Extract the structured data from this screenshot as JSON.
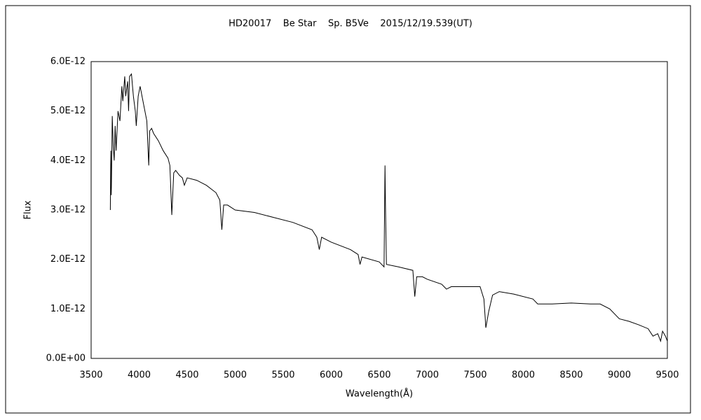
{
  "chart_data": {
    "type": "line",
    "title": "HD20017    Be Star    Sp. B5Ve    2015/12/19.539(UT)",
    "x_label": "Wavelength(Å)",
    "y_label": "Flux",
    "x": [
      3700,
      3705,
      3710,
      3720,
      3730,
      3740,
      3750,
      3760,
      3780,
      3800,
      3820,
      3830,
      3850,
      3860,
      3880,
      3890,
      3900,
      3920,
      3940,
      3960,
      3970,
      3990,
      4010,
      4030,
      4050,
      4080,
      4100,
      4110,
      4130,
      4150,
      4200,
      4250,
      4300,
      4320,
      4340,
      4360,
      4380,
      4420,
      4450,
      4471,
      4500,
      4600,
      4700,
      4800,
      4840,
      4861,
      4880,
      4920,
      5000,
      5200,
      5400,
      5600,
      5800,
      5850,
      5876,
      5900,
      6000,
      6200,
      6280,
      6300,
      6320,
      6500,
      6550,
      6560,
      6565,
      6575,
      6700,
      6850,
      6870,
      6890,
      6950,
      7000,
      7150,
      7200,
      7250,
      7400,
      7550,
      7590,
      7610,
      7640,
      7680,
      7750,
      7900,
      8100,
      8150,
      8300,
      8500,
      8700,
      8800,
      8900,
      9000,
      9100,
      9200,
      9300,
      9350,
      9400,
      9430,
      9450,
      9480,
      9500
    ],
    "series": [
      {
        "color": "#000000",
        "values": [
          3e-12,
          4.2e-12,
          3.3e-12,
          4.9e-12,
          4.3e-12,
          4e-12,
          4.7e-12,
          4.2e-12,
          5e-12,
          4.8e-12,
          5.5e-12,
          5.2e-12,
          5.7e-12,
          5.3e-12,
          5.6e-12,
          5e-12,
          5.7e-12,
          5.75e-12,
          5.3e-12,
          5e-12,
          4.7e-12,
          5.3e-12,
          5.5e-12,
          5.3e-12,
          5.1e-12,
          4.8e-12,
          3.9e-12,
          4.6e-12,
          4.65e-12,
          4.55e-12,
          4.4e-12,
          4.2e-12,
          4.05e-12,
          3.9e-12,
          2.9e-12,
          3.75e-12,
          3.8e-12,
          3.7e-12,
          3.65e-12,
          3.5e-12,
          3.65e-12,
          3.6e-12,
          3.5e-12,
          3.35e-12,
          3.2e-12,
          2.6e-12,
          3.1e-12,
          3.1e-12,
          3e-12,
          2.95e-12,
          2.85e-12,
          2.75e-12,
          2.6e-12,
          2.45e-12,
          2.2e-12,
          2.45e-12,
          2.35e-12,
          2.2e-12,
          2.1e-12,
          1.9e-12,
          2.05e-12,
          1.95e-12,
          1.85e-12,
          3.9e-12,
          3.1e-12,
          1.9e-12,
          1.85e-12,
          1.78e-12,
          1.25e-12,
          1.65e-12,
          1.65e-12,
          1.6e-12,
          1.5e-12,
          1.4e-12,
          1.45e-12,
          1.45e-12,
          1.45e-12,
          1.2e-12,
          6.2e-13,
          9.5e-13,
          1.28e-12,
          1.35e-12,
          1.3e-12,
          1.2e-12,
          1.1e-12,
          1.1e-12,
          1.12e-12,
          1.1e-12,
          1.1e-12,
          1e-12,
          8e-13,
          7.5e-13,
          6.8e-13,
          6e-13,
          4.5e-13,
          5e-13,
          3.5e-13,
          5.5e-13,
          4.5e-13,
          3.5e-13
        ]
      }
    ],
    "xlim": [
      3500,
      9500
    ],
    "xticks": [
      3500,
      4000,
      4500,
      5000,
      5500,
      6000,
      6500,
      7000,
      7500,
      8000,
      8500,
      9000,
      9500
    ],
    "ylim": [
      0,
      6e-12
    ],
    "yticks": [
      {
        "value": 0,
        "label": "0.0E+00"
      },
      {
        "value": 1e-12,
        "label": "1.0E-12"
      },
      {
        "value": 2e-12,
        "label": "2.0E-12"
      },
      {
        "value": 3e-12,
        "label": "3.0E-12"
      },
      {
        "value": 4e-12,
        "label": "4.0E-12"
      },
      {
        "value": 5e-12,
        "label": "5.0E-12"
      },
      {
        "value": 6e-12,
        "label": "6.0E-12"
      }
    ],
    "grid": false
  }
}
